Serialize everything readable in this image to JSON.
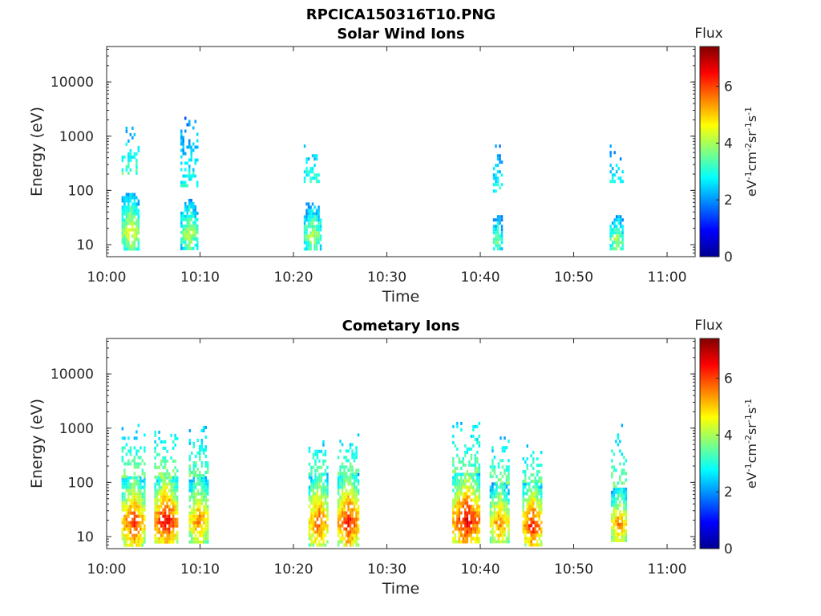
{
  "figure_title": "RPCICA150316T10.PNG",
  "colors": {
    "axis": "#262626",
    "background": "#ffffff",
    "colormap": [
      "#00008f",
      "#0000ff",
      "#0080ff",
      "#00ffff",
      "#80ff80",
      "#ffff00",
      "#ff8000",
      "#ff0000",
      "#800000"
    ]
  },
  "chart_data": [
    {
      "type": "heatmap",
      "title": "Solar Wind Ions",
      "xlabel": "Time",
      "ylabel": "Energy (eV)",
      "x_ticks": [
        "10:00",
        "10:10",
        "10:20",
        "10:30",
        "10:40",
        "10:50",
        "11:00"
      ],
      "x_range_minutes": [
        0,
        63
      ],
      "y_scale": "log",
      "y_ticks": [
        "10",
        "100",
        "1000",
        "10000"
      ],
      "y_range": [
        6,
        45000
      ],
      "colorbar": {
        "label": "Flux",
        "unit": "eV-1cm-2sr-1s-1",
        "range": [
          0,
          7.4
        ],
        "ticks": [
          "0",
          "2",
          "4",
          "6"
        ]
      },
      "bursts": [
        {
          "t": 2.5,
          "dt": 1.8,
          "low": [
            8,
            90
          ],
          "flux": 4.7,
          "high": [
            200,
            1500
          ],
          "hflux": 2.2
        },
        {
          "t": 8.8,
          "dt": 1.8,
          "low": [
            8,
            70
          ],
          "flux": 4.2,
          "high": [
            120,
            3000
          ],
          "hflux": 1.8
        },
        {
          "t": 22.0,
          "dt": 1.8,
          "low": [
            8,
            60
          ],
          "flux": 4.2,
          "high": [
            150,
            700
          ],
          "hflux": 2.0
        },
        {
          "t": 41.8,
          "dt": 0.9,
          "low": [
            8,
            35
          ],
          "flux": 3.8,
          "high": [
            100,
            700
          ],
          "hflux": 1.8
        },
        {
          "t": 54.5,
          "dt": 1.3,
          "low": [
            8,
            35
          ],
          "flux": 4.2,
          "high": [
            150,
            700
          ],
          "hflux": 1.8
        }
      ]
    },
    {
      "type": "heatmap",
      "title": "Cometary Ions",
      "xlabel": "Time",
      "ylabel": "Energy (eV)",
      "x_ticks": [
        "10:00",
        "10:10",
        "10:20",
        "10:30",
        "10:40",
        "10:50",
        "11:00"
      ],
      "x_range_minutes": [
        0,
        63
      ],
      "y_scale": "log",
      "y_ticks": [
        "10",
        "100",
        "1000",
        "10000"
      ],
      "y_range": [
        6,
        45000
      ],
      "colorbar": {
        "label": "Flux",
        "unit": "eV-1cm-2sr-1s-1",
        "range": [
          0,
          7.4
        ],
        "ticks": [
          "0",
          "2",
          "4",
          "6"
        ]
      },
      "bursts": [
        {
          "t": 2.8,
          "dt": 2.4,
          "low": [
            7,
            130
          ],
          "flux": 6.3,
          "high": [
            130,
            1200
          ],
          "hflux": 2.4
        },
        {
          "t": 6.3,
          "dt": 2.4,
          "low": [
            8,
            130
          ],
          "flux": 6.8,
          "high": [
            130,
            900
          ],
          "hflux": 2.6
        },
        {
          "t": 9.8,
          "dt": 2.0,
          "low": [
            8,
            130
          ],
          "flux": 5.7,
          "high": [
            130,
            1100
          ],
          "hflux": 2.4
        },
        {
          "t": 22.6,
          "dt": 2.0,
          "low": [
            7,
            150
          ],
          "flux": 6.0,
          "high": [
            150,
            600
          ],
          "hflux": 2.4
        },
        {
          "t": 25.8,
          "dt": 2.2,
          "low": [
            7,
            150
          ],
          "flux": 6.5,
          "high": [
            150,
            800
          ],
          "hflux": 2.4
        },
        {
          "t": 38.5,
          "dt": 3.0,
          "low": [
            8,
            150
          ],
          "flux": 6.8,
          "high": [
            150,
            1500
          ],
          "hflux": 2.4
        },
        {
          "t": 42.0,
          "dt": 2.0,
          "low": [
            8,
            100
          ],
          "flux": 5.7,
          "high": [
            100,
            700
          ],
          "hflux": 2.4
        },
        {
          "t": 45.5,
          "dt": 2.0,
          "low": [
            7,
            100
          ],
          "flux": 6.5,
          "high": [
            100,
            500
          ],
          "hflux": 2.4
        },
        {
          "t": 54.8,
          "dt": 1.6,
          "low": [
            8,
            80
          ],
          "flux": 5.7,
          "high": [
            80,
            1200
          ],
          "hflux": 2.4
        }
      ]
    }
  ]
}
